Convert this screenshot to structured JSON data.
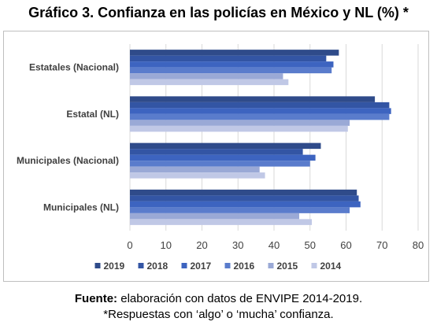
{
  "title": "Gráfico 3. Confianza en las policías en México y NL (%) *",
  "footer": {
    "source_label": "Fuente:",
    "source_text": " elaboración con datos de ENVIPE 2014-2019.",
    "note": "*Respuestas con ‘algo’ o ‘mucha’ confianza."
  },
  "chart_data": {
    "type": "bar",
    "orientation": "horizontal",
    "title": "Gráfico 3. Confianza en las policías en México y NL (%) *",
    "xlabel": "",
    "ylabel": "",
    "xlim": [
      0,
      80
    ],
    "xticks": [
      0,
      10,
      20,
      30,
      40,
      50,
      60,
      70,
      80
    ],
    "grid": true,
    "legend_position": "bottom",
    "categories": [
      "Estatales (Nacional)",
      "Estatal (NL)",
      "Municipales (Nacional)",
      "Municipales (NL)"
    ],
    "series": [
      {
        "name": "2019",
        "color": "#2f4b8a",
        "values": [
          58,
          68,
          53,
          63
        ]
      },
      {
        "name": "2018",
        "color": "#3355a4",
        "values": [
          54.5,
          72,
          48,
          63.5
        ]
      },
      {
        "name": "2017",
        "color": "#3d64c0",
        "values": [
          56.5,
          72.5,
          51.5,
          64
        ]
      },
      {
        "name": "2016",
        "color": "#5a7ccc",
        "values": [
          56,
          72,
          50,
          61
        ]
      },
      {
        "name": "2015",
        "color": "#9aa9d6",
        "values": [
          42.5,
          61,
          36,
          47
        ]
      },
      {
        "name": "2014",
        "color": "#c0c8e6",
        "values": [
          44,
          60.5,
          37.5,
          50.5
        ]
      }
    ]
  }
}
